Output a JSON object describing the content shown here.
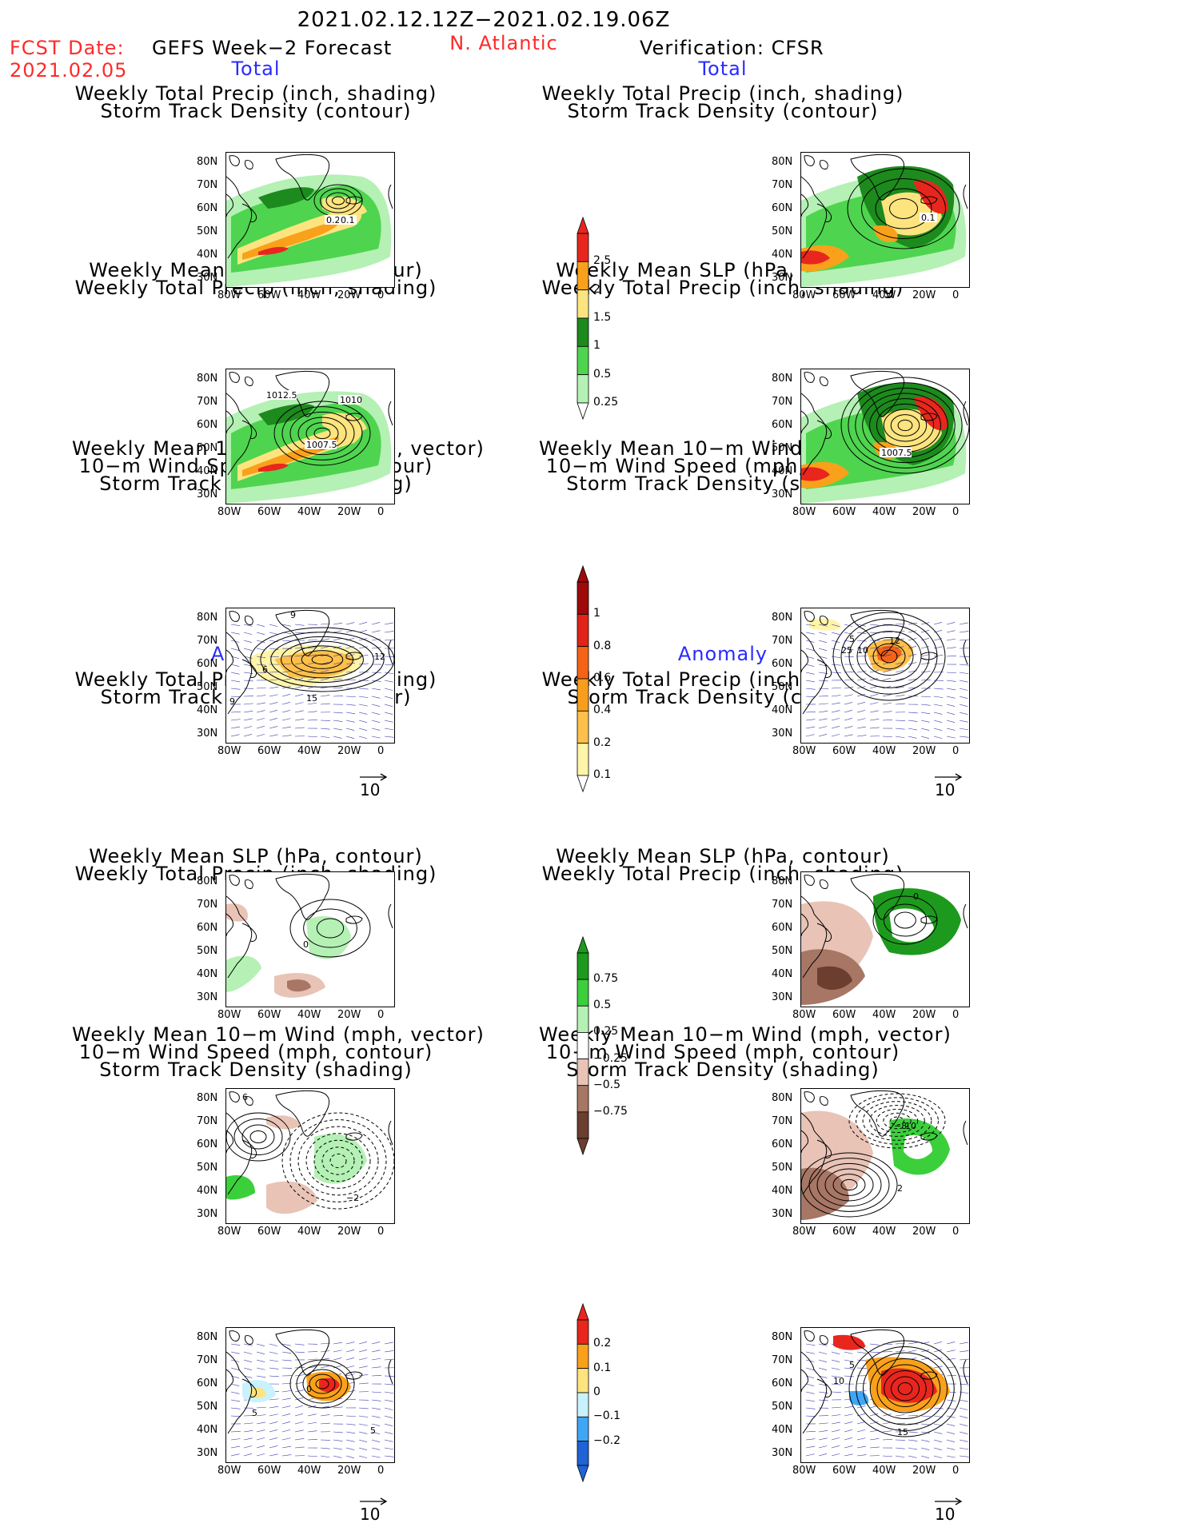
{
  "header": {
    "period": "2021.02.12.12Z−2021.02.19.06Z",
    "fcst_label": "FCST Date:",
    "fcst_date": "2021.02.05",
    "left_title": "GEFS Week−2 Forecast",
    "region": "N. Atlantic",
    "right_title": "Verification: CFSR"
  },
  "sections": {
    "total": "Total",
    "anomaly": "Anomaly"
  },
  "panel_titles": {
    "precip_storm": [
      "Weekly Total Precip (inch, shading)",
      "Storm Track Density (contour)"
    ],
    "slp_precip": [
      "Weekly Mean SLP (hPa, contour)",
      "Weekly Total Precip (inch, shading)"
    ],
    "wind_storm": [
      "Weekly Mean 10−m Wind (mph, vector)",
      "10−m Wind Speed (mph, contour)",
      "Storm Track Density (shading)"
    ]
  },
  "axes": {
    "lat_ticks": [
      "80N",
      "70N",
      "60N",
      "50N",
      "40N",
      "30N"
    ],
    "lon_ticks": [
      "80W",
      "60W",
      "40W",
      "20W",
      "0"
    ]
  },
  "vector_ref": "10",
  "contour_labels": {
    "g1": [
      "0.2",
      "0.1"
    ],
    "c1": [
      "0.1"
    ],
    "g2": [
      "1012.5",
      "1010",
      "1007.5"
    ],
    "c2": [
      "1007.5"
    ],
    "g3": [
      "9",
      "12",
      "6",
      "9",
      "15"
    ],
    "c3": [
      "5",
      "25",
      "10",
      "12"
    ],
    "g4": [
      "0"
    ],
    "c4": [
      "0"
    ],
    "g5": [
      "6",
      "−2"
    ],
    "c5": [
      "−8",
      "10",
      "2"
    ],
    "g6": [
      "5",
      "0",
      "5"
    ],
    "c6": [
      "5",
      "10",
      "15"
    ]
  },
  "colorbars": {
    "precip": {
      "labels": [
        "2.5",
        "2",
        "1.5",
        "1",
        "0.5",
        "0.25"
      ],
      "colors": [
        "#e8261e",
        "#f9a11b",
        "#fde47f",
        "#1d8a1d",
        "#4fd44f",
        "#b5f0b5"
      ]
    },
    "storm": {
      "labels": [
        "1",
        "0.8",
        "0.6",
        "0.4",
        "0.2",
        "0.1"
      ],
      "colors": [
        "#9e0a0a",
        "#e2231a",
        "#f56316",
        "#f99d1c",
        "#fec04a",
        "#fff4a8"
      ]
    },
    "precip_anom": {
      "labels": [
        "0.75",
        "0.5",
        "0.25",
        "−0.25",
        "−0.5",
        "−0.75"
      ],
      "colors": [
        "#1d9a1d",
        "#3ccf3c",
        "#b5f0b5",
        "#ffffff",
        "#e8c3b6",
        "#a77665",
        "#6b3e2f"
      ]
    },
    "storm_anom": {
      "labels": [
        "0.2",
        "0.1",
        "0",
        "−0.1",
        "−0.2"
      ],
      "colors": [
        "#e8261e",
        "#f9a11b",
        "#fde47f",
        "#c8f2ff",
        "#3fa6f5",
        "#1f63d6"
      ]
    }
  }
}
